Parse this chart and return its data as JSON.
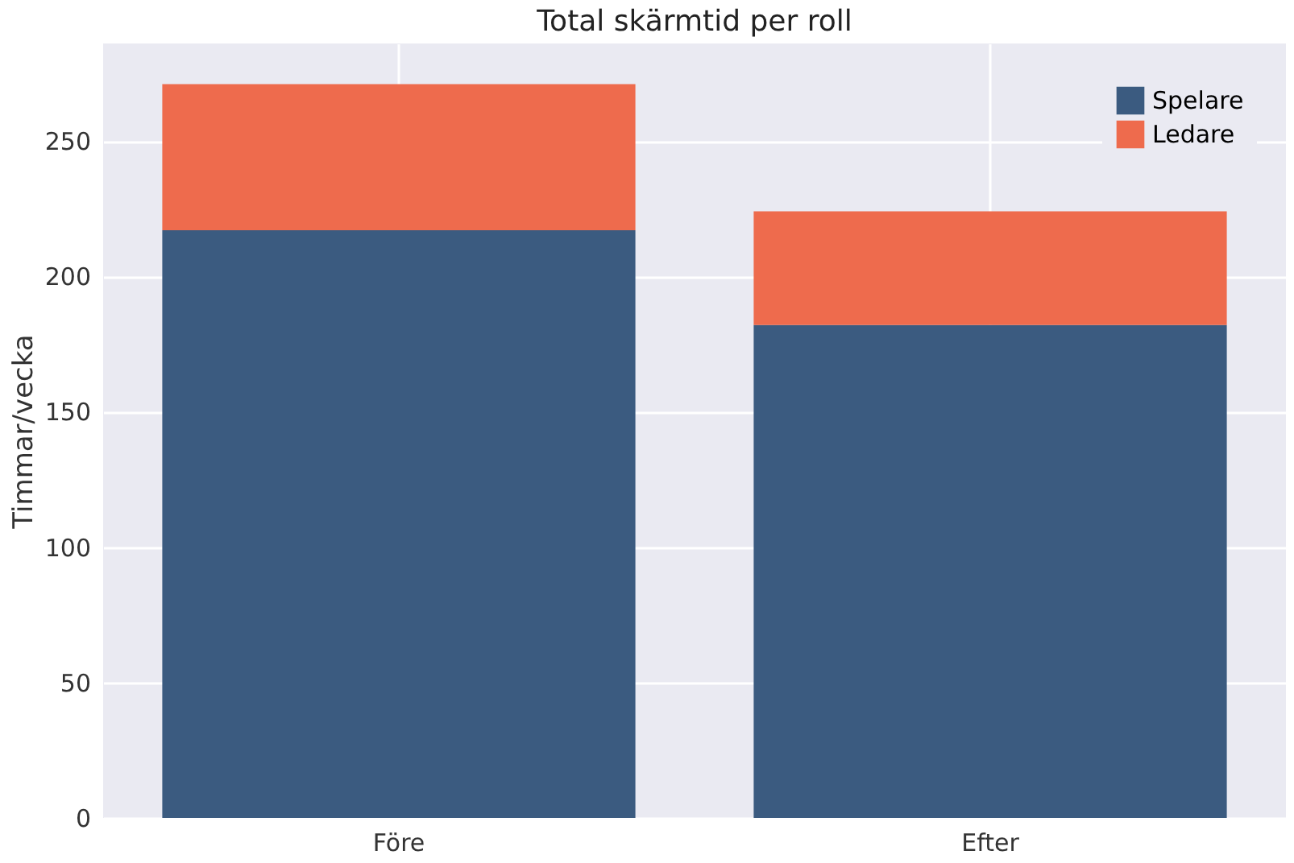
{
  "chart_data": {
    "type": "bar",
    "title": "Total skärmtid per roll",
    "ylabel": "Timmar/vecka",
    "categories": [
      "Före",
      "Efter"
    ],
    "stacked": true,
    "series": [
      {
        "name": "Spelare",
        "color": "#3b5b80",
        "values": [
          217,
          182
        ]
      },
      {
        "name": "Ledare",
        "color": "#ee6b4d",
        "values": [
          54,
          42
        ]
      }
    ],
    "ylim": [
      0,
      286
    ],
    "yticks": [
      0,
      50,
      100,
      150,
      200,
      250
    ],
    "grid": true,
    "legend": "top right"
  }
}
